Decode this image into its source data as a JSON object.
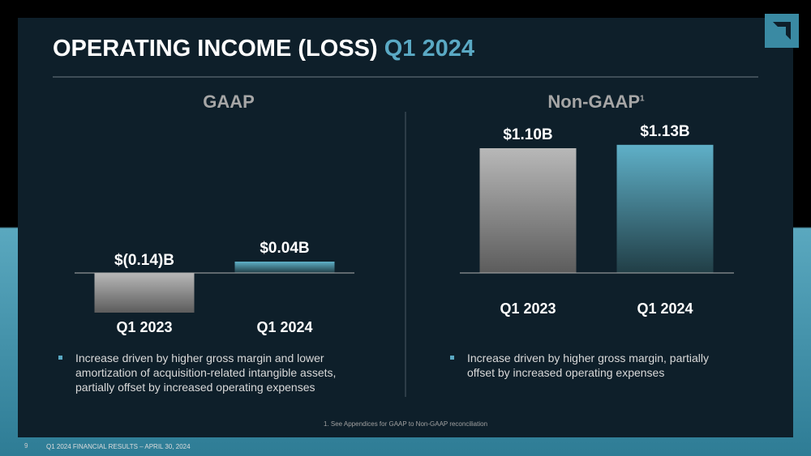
{
  "slide": {
    "title": "OPERATING INCOME (LOSS)",
    "title_highlight": "Q1 2024",
    "footnote": "1. See Appendices for GAAP to Non-GAAP reconciliation",
    "page_number": "9",
    "footer": "Q1 2024 FINANCIAL RESULTS – APRIL 30, 2024"
  },
  "chart_data": [
    {
      "type": "bar",
      "title": "GAAP",
      "categories": [
        "Q1 2023",
        "Q1 2024"
      ],
      "values": [
        -0.14,
        0.04
      ],
      "value_labels": [
        "$(0.14)B",
        "$0.04B"
      ],
      "colors": [
        "#b8b8b8",
        "#5fb0c8"
      ],
      "bullets": [
        "Increase driven by higher gross margin and lower amortization of acquisition-related intangible assets, partially offset by increased operating expenses"
      ]
    },
    {
      "type": "bar",
      "title": "Non-GAAP",
      "title_note": "1",
      "categories": [
        "Q1 2023",
        "Q1 2024"
      ],
      "values": [
        1.1,
        1.13
      ],
      "value_labels": [
        "$1.10B",
        "$1.13B"
      ],
      "colors": [
        "#b8b8b8",
        "#5fb0c8"
      ],
      "bullets": [
        "Increase driven by higher gross margin, partially offset by increased operating expenses"
      ]
    }
  ]
}
